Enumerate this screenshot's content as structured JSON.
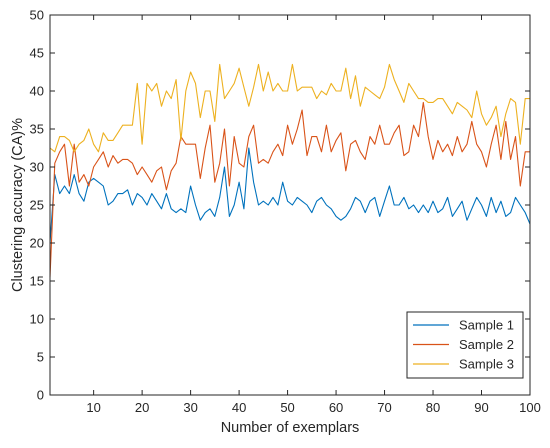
{
  "chart_data": {
    "type": "line",
    "xlabel": "Number of exemplars",
    "ylabel": "Clustering accuracy (CA)%",
    "xlim": [
      1,
      100
    ],
    "ylim": [
      0,
      50
    ],
    "xticks": [
      10,
      20,
      30,
      40,
      50,
      60,
      70,
      80,
      90,
      100
    ],
    "yticks": [
      0,
      5,
      10,
      15,
      20,
      25,
      30,
      35,
      40,
      45,
      50
    ],
    "grid": false,
    "legend_position": "bottom-right",
    "x": [
      1,
      2,
      3,
      4,
      5,
      6,
      7,
      8,
      9,
      10,
      11,
      12,
      13,
      14,
      15,
      16,
      17,
      18,
      19,
      20,
      21,
      22,
      23,
      24,
      25,
      26,
      27,
      28,
      29,
      30,
      31,
      32,
      33,
      34,
      35,
      36,
      37,
      38,
      39,
      40,
      41,
      42,
      43,
      44,
      45,
      46,
      47,
      48,
      49,
      50,
      51,
      52,
      53,
      54,
      55,
      56,
      57,
      58,
      59,
      60,
      61,
      62,
      63,
      64,
      65,
      66,
      67,
      68,
      69,
      70,
      71,
      72,
      73,
      74,
      75,
      76,
      77,
      78,
      79,
      80,
      81,
      82,
      83,
      84,
      85,
      86,
      87,
      88,
      89,
      90,
      91,
      92,
      93,
      94,
      95,
      96,
      97,
      98,
      99,
      100
    ],
    "series": [
      {
        "name": "Sample 1",
        "color": "#0072BD",
        "values": [
          20,
          29,
          26.5,
          27.5,
          26.5,
          29,
          26.5,
          25.5,
          28,
          28.5,
          28,
          27.5,
          25,
          25.5,
          26.5,
          26.5,
          27,
          25,
          26.5,
          26,
          25,
          26.5,
          25.5,
          24.5,
          26.5,
          24.5,
          24,
          24.5,
          24,
          27.5,
          25,
          23,
          24,
          24.5,
          23.5,
          26,
          30,
          23.5,
          25,
          28,
          24.5,
          32.5,
          28,
          25,
          25.5,
          25,
          26,
          25,
          28,
          25.5,
          25,
          26,
          25.5,
          25,
          24,
          25.5,
          26,
          25,
          24.5,
          23.5,
          23,
          23.5,
          24.5,
          26,
          25.5,
          24,
          25.5,
          26,
          23.5,
          25.5,
          27.5,
          25,
          25,
          26,
          24.5,
          25,
          24,
          25,
          24,
          25.5,
          24,
          24.5,
          26,
          23.5,
          24.5,
          25.5,
          23,
          24.5,
          26,
          25,
          23.5,
          26,
          24,
          25.5,
          23.5,
          24,
          26,
          25,
          24,
          22.5
        ]
      },
      {
        "name": "Sample 2",
        "color": "#D95319",
        "values": [
          15.5,
          30.5,
          32,
          33,
          27.5,
          33,
          28,
          29,
          27.5,
          30,
          31,
          32,
          30,
          31.5,
          30.5,
          31,
          31,
          30.5,
          29,
          30,
          29,
          28,
          29.5,
          30,
          27,
          29.5,
          30.5,
          34,
          33,
          33,
          33,
          28.5,
          32.5,
          35.5,
          28,
          30.5,
          35,
          27.5,
          34,
          30.5,
          30,
          34,
          35.5,
          30.5,
          31,
          30.5,
          32,
          33,
          31.5,
          35.5,
          33,
          35,
          37.5,
          31.5,
          34,
          34,
          32,
          35.5,
          32,
          33.5,
          34.5,
          29.5,
          33,
          33.5,
          32,
          31,
          34,
          33,
          35.5,
          33,
          33,
          34.5,
          35.5,
          31.5,
          32,
          35.5,
          34,
          38.5,
          34,
          31,
          33.5,
          32,
          33,
          31.5,
          34,
          32,
          33,
          36,
          33,
          32,
          30,
          33,
          35.5,
          31,
          36,
          31,
          34,
          27.5,
          32,
          32
        ]
      },
      {
        "name": "Sample 3",
        "color": "#EDB120",
        "values": [
          32.5,
          32,
          34,
          34,
          33.5,
          32,
          33,
          33.5,
          35,
          33,
          32,
          34.5,
          33.5,
          33.5,
          34.5,
          35.5,
          35.5,
          35.5,
          41,
          33,
          41,
          40,
          41,
          38,
          40,
          39,
          41.5,
          33.5,
          40,
          42.5,
          41,
          36.5,
          40,
          40,
          36,
          43.5,
          39,
          40,
          41,
          43,
          40.5,
          38,
          40.5,
          43.5,
          40,
          42.5,
          40,
          41,
          40,
          40,
          43.5,
          40,
          40.5,
          40.5,
          40.5,
          39,
          40,
          39.5,
          41,
          40,
          40,
          43,
          39,
          42,
          38,
          40.5,
          40,
          39.5,
          39,
          40.5,
          43.5,
          41.5,
          40,
          38.5,
          41,
          40,
          39,
          39,
          38.5,
          38.5,
          39,
          39,
          38,
          37,
          38.5,
          38,
          37.5,
          36.5,
          40,
          37,
          35.5,
          36.5,
          38,
          34,
          37,
          39,
          38.5,
          33,
          39,
          39
        ]
      }
    ]
  }
}
